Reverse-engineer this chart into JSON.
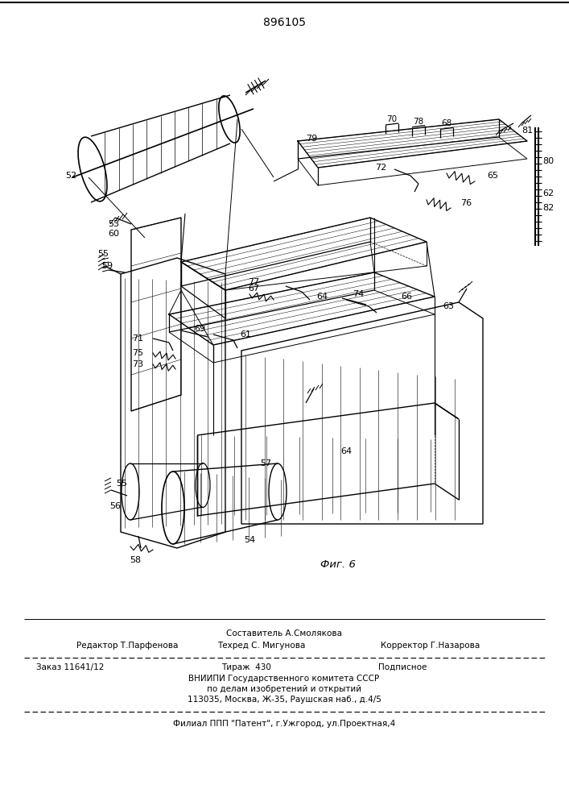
{
  "patent_number": "896105",
  "fig_label": "Фиг. 6",
  "footer": {
    "line1_center_top": "Составитель А.Смолякова",
    "line1_left": "Редактор Т.Парфенова",
    "line1_center_bot": "Техред С. Мигунова",
    "line1_right": "Корректор Г.Назарова",
    "line2_left": "Заказ 11641/12",
    "line2_center": "Тираж  430",
    "line2_right": "Подписное",
    "line3": "ВНИИПИ Государственного комитета СССР",
    "line4": "по делам изобретений и открытий",
    "line5": "113035, Москва, Ж-35, Раушская наб., д.4/5",
    "line6": "Филиал ППП \"Патент\", г.Ужгород, ул.Проектная,4"
  },
  "bg_color": "#ffffff",
  "line_color": "#000000"
}
